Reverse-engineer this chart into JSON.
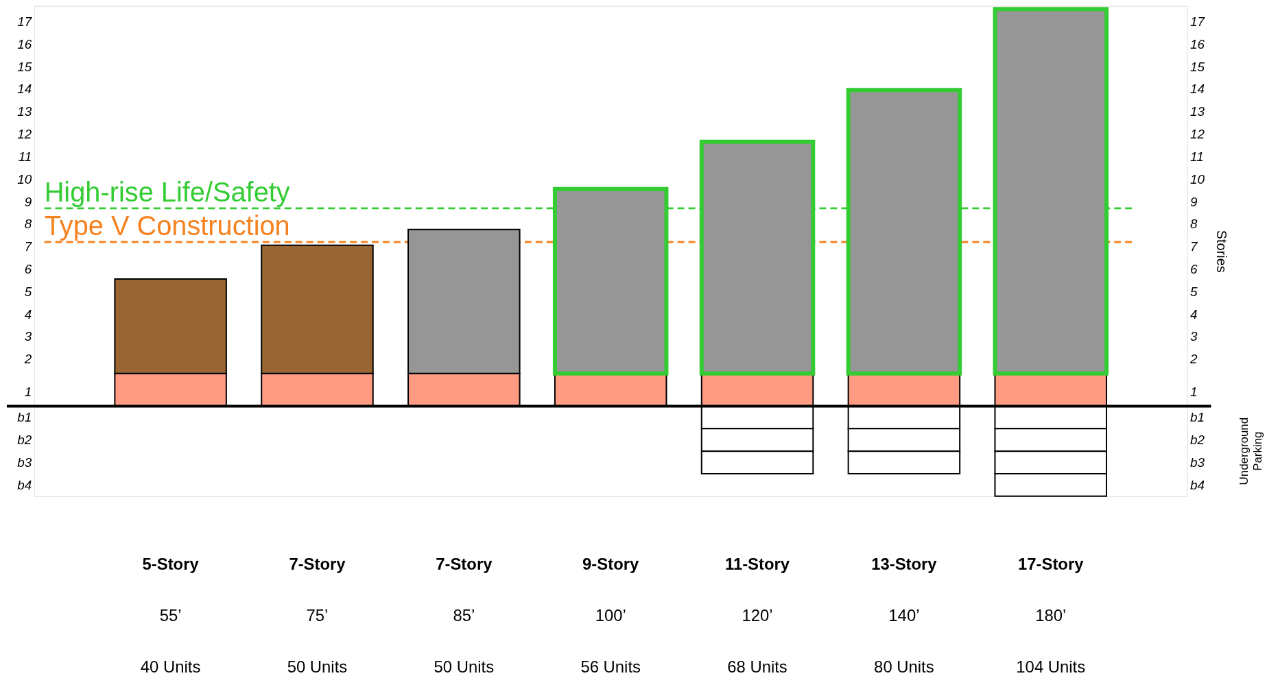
{
  "chart_data": {
    "type": "bar",
    "stacked": true,
    "categories": [
      "5-Story",
      "7-Story",
      "7-Story",
      "9-Story",
      "11-Story",
      "13-Story",
      "17-Story"
    ],
    "y2label": "Stories",
    "ylim": [
      -4,
      17.8
    ],
    "yticks": [
      {
        "value": -3.5,
        "label": "b4"
      },
      {
        "value": -2.5,
        "label": "b3"
      },
      {
        "value": -1.5,
        "label": "b2"
      },
      {
        "value": -0.5,
        "label": "b1"
      },
      {
        "value": 0.65,
        "label": "1"
      },
      {
        "value": 2.1,
        "label": "2"
      },
      {
        "value": 3.1,
        "label": "3"
      },
      {
        "value": 4.1,
        "label": "4"
      },
      {
        "value": 5.1,
        "label": "5"
      },
      {
        "value": 6.1,
        "label": "6"
      },
      {
        "value": 7.1,
        "label": "7"
      },
      {
        "value": 8.1,
        "label": "8"
      },
      {
        "value": 9.1,
        "label": "9"
      },
      {
        "value": 10.1,
        "label": "10"
      },
      {
        "value": 11.1,
        "label": "11"
      },
      {
        "value": 12.1,
        "label": "12"
      },
      {
        "value": 13.1,
        "label": "13"
      },
      {
        "value": 14.1,
        "label": "14"
      },
      {
        "value": 15.1,
        "label": "15"
      },
      {
        "value": 16.1,
        "label": "16"
      },
      {
        "value": 17.1,
        "label": "17"
      }
    ],
    "y2lim": [
      -4,
      17.8
    ],
    "y2ticks": [
      {
        "value": -3.5,
        "label": "b4"
      },
      {
        "value": -2.5,
        "label": "b3"
      },
      {
        "value": -1.5,
        "label": "b2"
      },
      {
        "value": -0.5,
        "label": "b1"
      },
      {
        "value": 0.65,
        "label": "1"
      },
      {
        "value": 2.1,
        "label": "2"
      },
      {
        "value": 3.1,
        "label": "3"
      },
      {
        "value": 4.1,
        "label": "4"
      },
      {
        "value": 5.1,
        "label": "5"
      },
      {
        "value": 6.1,
        "label": "6"
      },
      {
        "value": 7.1,
        "label": "7"
      },
      {
        "value": 8.1,
        "label": "8"
      },
      {
        "value": 9.1,
        "label": "9"
      },
      {
        "value": 10.1,
        "label": "10"
      },
      {
        "value": 11.1,
        "label": "11"
      },
      {
        "value": 12.1,
        "label": "12"
      },
      {
        "value": 13.1,
        "label": "13"
      },
      {
        "value": 14.1,
        "label": "14"
      },
      {
        "value": 15.1,
        "label": "15"
      },
      {
        "value": 16.1,
        "label": "16"
      },
      {
        "value": 17.1,
        "label": "17"
      }
    ],
    "series": [
      {
        "colors": [
          "#ff9b82",
          "#ff9b82",
          "#ff9b82",
          "#ff9b82",
          "#ff9b82",
          "#ff9b82",
          "#ff9b82"
        ],
        "values": [
          1.46,
          1.46,
          1.46,
          1.46,
          1.46,
          1.46,
          1.46
        ]
      },
      {
        "colors": [
          "#996633",
          "#996633",
          "#969696",
          "#969696",
          "#969696",
          "#969696",
          "#969696"
        ],
        "values": [
          4.2,
          5.7,
          6.4,
          8.2,
          10.3,
          12.6,
          16.2
        ]
      },
      {
        "color": "#ffffff",
        "values": [
          null,
          null,
          null,
          null,
          -1,
          -1,
          -1
        ]
      },
      {
        "color": "#ffffff",
        "values": [
          null,
          null,
          null,
          null,
          -1,
          -1,
          -1
        ]
      },
      {
        "color": "#ffffff",
        "values": [
          null,
          null,
          null,
          null,
          -1,
          -1,
          -1
        ]
      },
      {
        "color": "#ffffff",
        "values": [
          null,
          null,
          null,
          null,
          null,
          null,
          -1
        ]
      }
    ],
    "ref_lines": [
      {
        "axis": "y",
        "value": 8.8,
        "label": "High-rise Life/Safety",
        "color": "#33cc33",
        "line_style": "dashed"
      },
      {
        "axis": "y",
        "value": 7.3,
        "label": "Type V Construction",
        "color": "#f58220",
        "line_style": "dashed"
      }
    ],
    "annotations": [
      "55’",
      "75’",
      "85’",
      "100’",
      "120’",
      "140’",
      "180’",
      "40 Units",
      "50 Units",
      "50 Units",
      "56 Units",
      "68 Units",
      "80 Units",
      "104 Units",
      "Underground Parking"
    ],
    "grid": false
  }
}
